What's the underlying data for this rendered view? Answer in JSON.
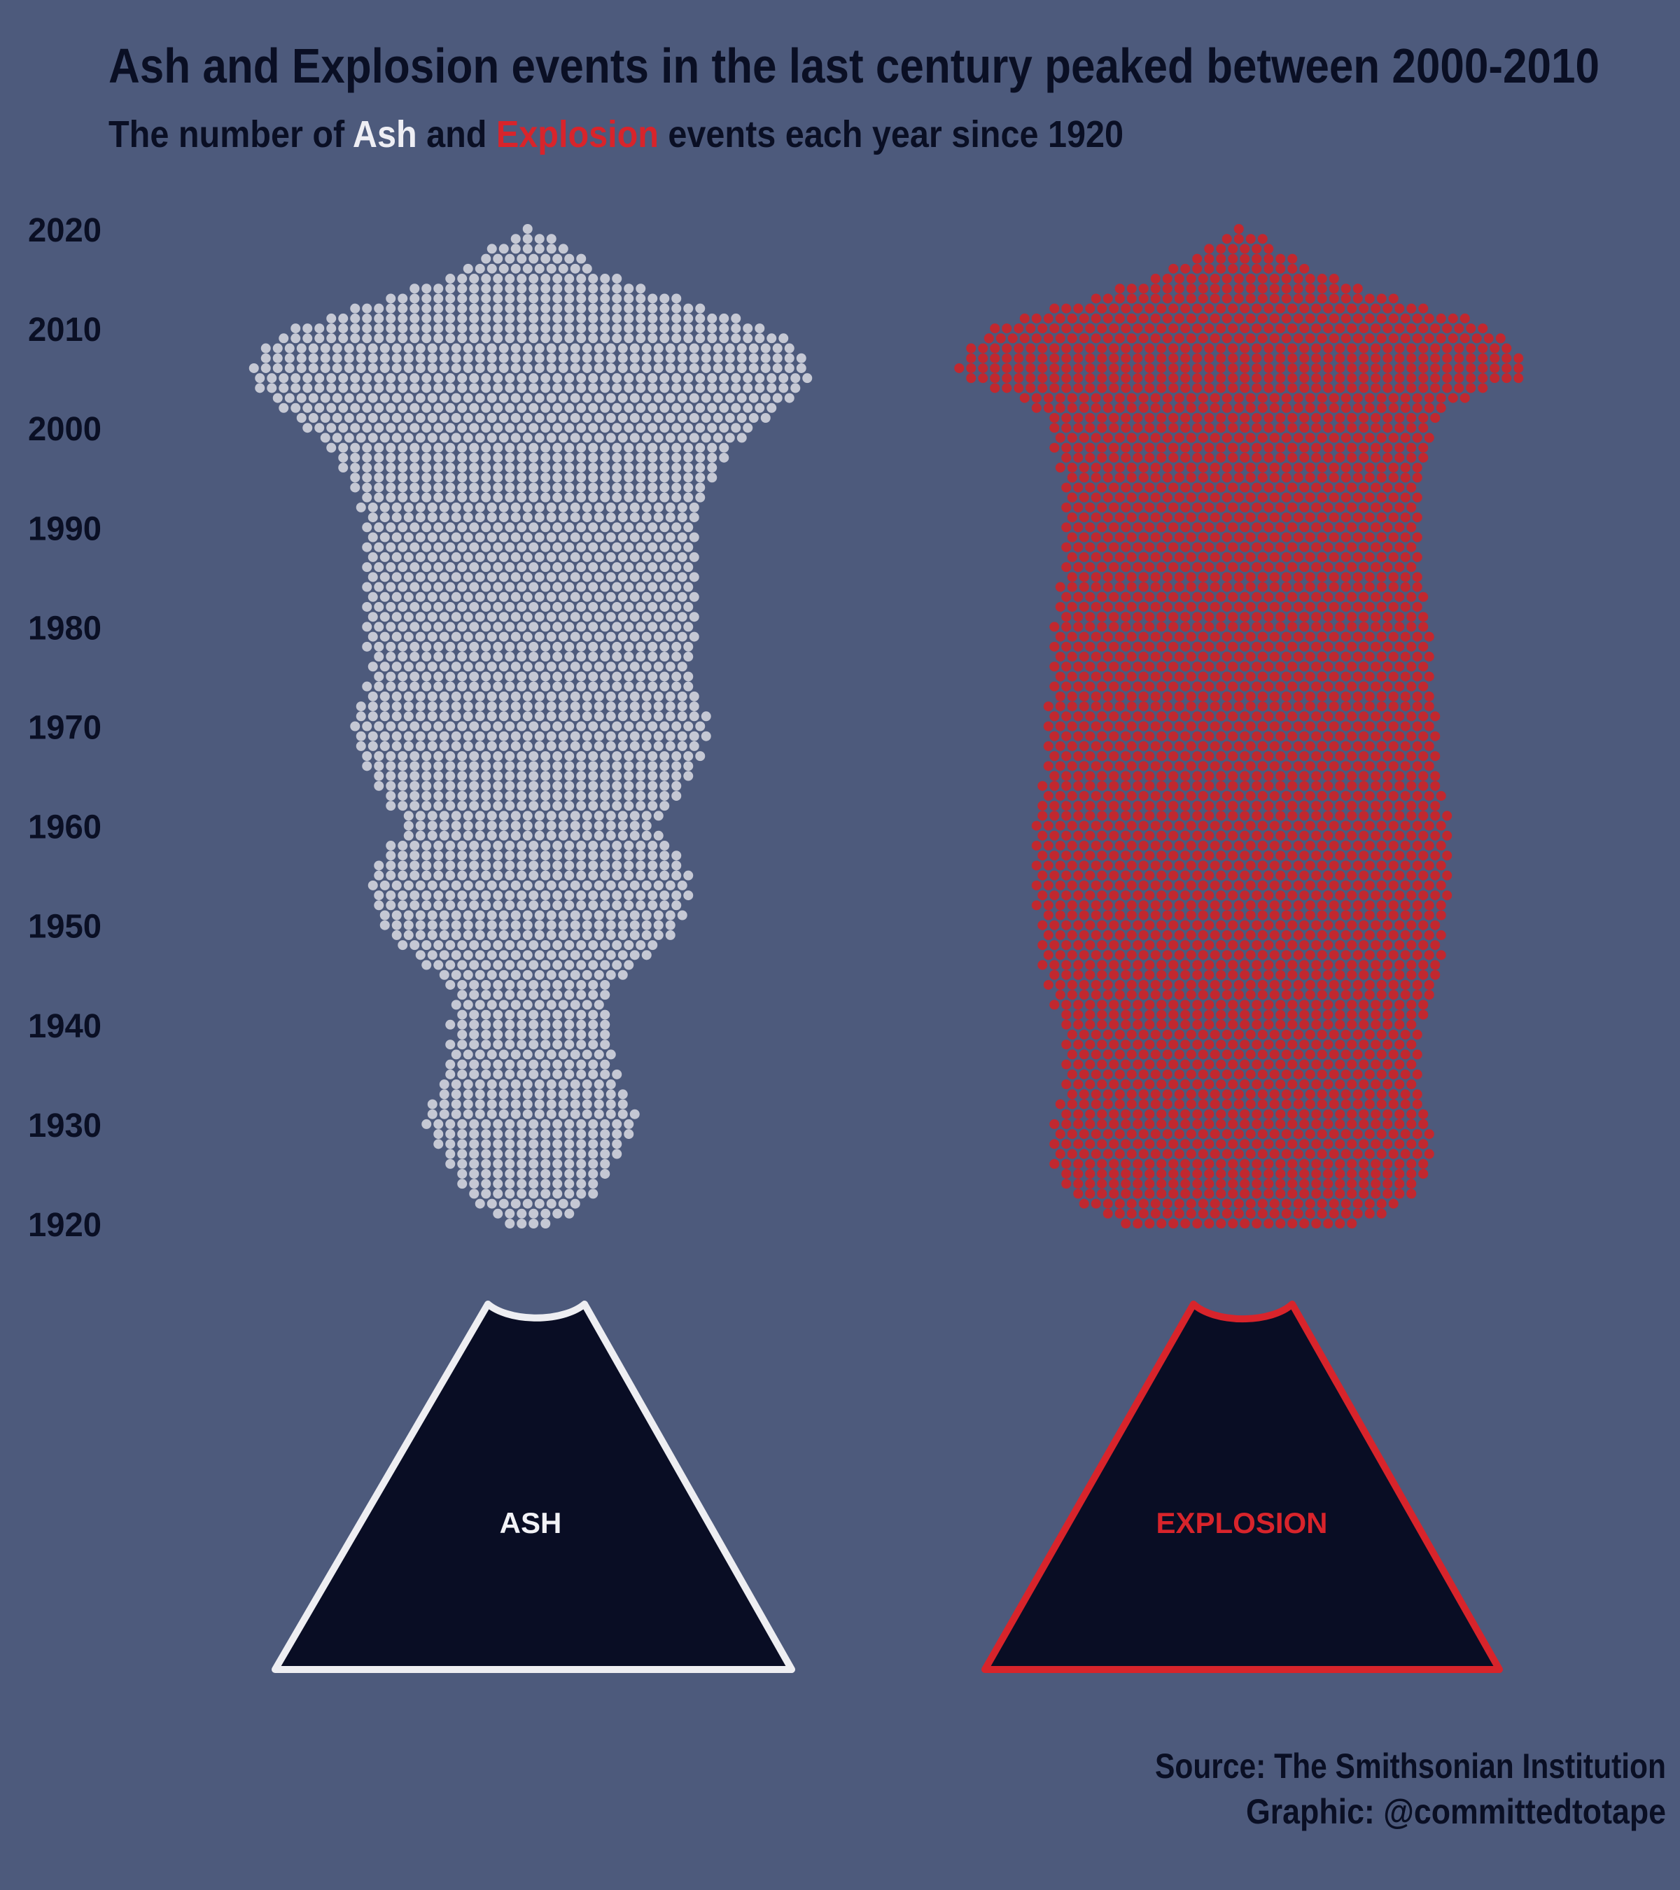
{
  "chart_data": {
    "type": "dot-plume",
    "title": "Ash and Explosion events in the last century peaked between 2000-2010",
    "subtitle": [
      "The number of ",
      "Ash",
      " and ",
      "Explosion",
      " events each year since 1920"
    ],
    "x": [
      1920,
      1921,
      1922,
      1923,
      1924,
      1925,
      1926,
      1927,
      1928,
      1929,
      1930,
      1931,
      1932,
      1933,
      1934,
      1935,
      1936,
      1937,
      1938,
      1939,
      1940,
      1941,
      1942,
      1943,
      1944,
      1945,
      1946,
      1947,
      1948,
      1949,
      1950,
      1951,
      1952,
      1953,
      1954,
      1955,
      1956,
      1957,
      1958,
      1959,
      1960,
      1961,
      1962,
      1963,
      1964,
      1965,
      1966,
      1967,
      1968,
      1969,
      1970,
      1971,
      1972,
      1973,
      1974,
      1975,
      1976,
      1977,
      1978,
      1979,
      1980,
      1981,
      1982,
      1983,
      1984,
      1985,
      1986,
      1987,
      1988,
      1989,
      1990,
      1991,
      1992,
      1993,
      1994,
      1995,
      1996,
      1997,
      1998,
      1999,
      2000,
      2001,
      2002,
      2003,
      2004,
      2005,
      2006,
      2007,
      2008,
      2009,
      2010,
      2011,
      2012,
      2013,
      2014,
      2015,
      2016,
      2017,
      2018,
      2019,
      2020
    ],
    "series": [
      {
        "name": "ASH",
        "color": "#d3d4de",
        "values": [
          4,
          7,
          9,
          11,
          12,
          13,
          14,
          15,
          16,
          17,
          18,
          18,
          17,
          16,
          15,
          15,
          14,
          14,
          14,
          13,
          14,
          13,
          13,
          13,
          14,
          16,
          18,
          20,
          22,
          24,
          25,
          26,
          26,
          27,
          27,
          27,
          26,
          25,
          24,
          22,
          21,
          22,
          24,
          25,
          26,
          27,
          28,
          29,
          29,
          30,
          30,
          30,
          29,
          28,
          28,
          27,
          27,
          27,
          28,
          28,
          28,
          28,
          28,
          28,
          28,
          28,
          28,
          28,
          28,
          28,
          28,
          28,
          29,
          29,
          30,
          31,
          32,
          33,
          34,
          36,
          38,
          40,
          42,
          44,
          46,
          47,
          47,
          46,
          45,
          43,
          40,
          35,
          30,
          25,
          20,
          15,
          11,
          9,
          7,
          4,
          1
        ]
      },
      {
        "name": "EXPLOSION",
        "color": "#c1282f",
        "values": [
          20,
          24,
          27,
          29,
          30,
          31,
          32,
          32,
          32,
          32,
          32,
          31,
          31,
          30,
          30,
          30,
          30,
          30,
          30,
          30,
          30,
          31,
          32,
          32,
          33,
          33,
          34,
          34,
          34,
          34,
          34,
          34,
          35,
          35,
          35,
          35,
          35,
          35,
          35,
          35,
          35,
          35,
          34,
          34,
          34,
          33,
          33,
          33,
          33,
          33,
          33,
          33,
          33,
          32,
          32,
          32,
          32,
          32,
          32,
          32,
          32,
          31,
          31,
          31,
          31,
          30,
          30,
          30,
          30,
          30,
          30,
          30,
          30,
          30,
          30,
          30,
          31,
          31,
          32,
          32,
          32,
          33,
          35,
          38,
          42,
          47,
          48,
          47,
          46,
          44,
          42,
          38,
          32,
          26,
          21,
          16,
          12,
          9,
          6,
          4,
          1
        ]
      }
    ],
    "ylim": [
      1920,
      2020
    ],
    "yticks": [
      1920,
      1930,
      1940,
      1950,
      1960,
      1970,
      1980,
      1990,
      2000,
      2010,
      2020
    ],
    "source": "Source: The Smithsonian Institution",
    "credit": "Graphic: @committedtotape"
  }
}
